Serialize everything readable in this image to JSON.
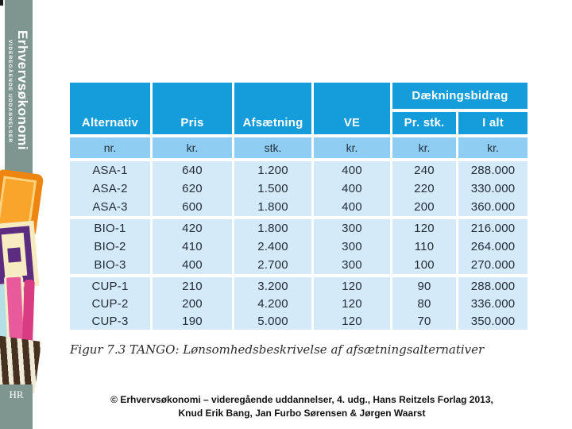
{
  "slide": {
    "sidebar": {
      "series_title": "Erhvervsøkonomi",
      "series_subtitle": "VIDEREGÅENDE UDDANNELSER",
      "publisher_monogram": "HR"
    },
    "table": {
      "merged_header": "Dækningsbidrag",
      "columns": [
        {
          "label": "Alternativ",
          "unit": "nr."
        },
        {
          "label": "Pris",
          "unit": "kr."
        },
        {
          "label": "Afsætning",
          "unit": "stk."
        },
        {
          "label": "VE",
          "unit": "kr."
        },
        {
          "label": "Pr. stk.",
          "unit": "kr."
        },
        {
          "label": "I alt",
          "unit": "kr."
        }
      ],
      "groups": [
        {
          "rows": [
            [
              "ASA-1",
              "640",
              "1.200",
              "400",
              "240",
              "288.000"
            ],
            [
              "ASA-2",
              "620",
              "1.500",
              "400",
              "220",
              "330.000"
            ],
            [
              "ASA-3",
              "600",
              "1.800",
              "400",
              "200",
              "360.000"
            ]
          ]
        },
        {
          "rows": [
            [
              "BIO-1",
              "420",
              "1.800",
              "300",
              "120",
              "216.000"
            ],
            [
              "BIO-2",
              "410",
              "2.400",
              "300",
              "110",
              "264.000"
            ],
            [
              "BIO-3",
              "400",
              "2.700",
              "300",
              "100",
              "270.000"
            ]
          ]
        },
        {
          "rows": [
            [
              "CUP-1",
              "210",
              "3.200",
              "120",
              "90",
              "288.000"
            ],
            [
              "CUP-2",
              "200",
              "4.200",
              "120",
              "80",
              "336.000"
            ],
            [
              "CUP-3",
              "190",
              "5.000",
              "120",
              "70",
              "350.000"
            ]
          ]
        }
      ]
    },
    "caption": "Figur 7.3 TANGO: Lønsomhedsbeskrivelse af afsætningsalternativer",
    "footer_line1": "© Erhvervsøkonomi – videregående uddannelser, 4. udg., Hans Reitzels Forlag 2013,",
    "footer_line2": "Knud Erik Bang, Jan Furbo Sørensen & Jørgen Waarst"
  },
  "colors": {
    "header_blue": "#149CDB",
    "unit_row_blue": "#8FCEF2",
    "data_row_blue": "#D5EAF8",
    "sidebar_green": "#7E968F",
    "art_orange": "#F9A42B",
    "art_purple": "#5B2C80",
    "art_pink": "#E85A9C",
    "art_brown": "#46301F"
  }
}
